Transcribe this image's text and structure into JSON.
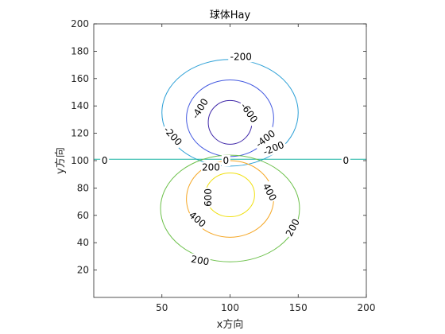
{
  "chart_data": {
    "type": "contour",
    "title": "球体Hay",
    "xlabel": "x方向",
    "ylabel": "y方向",
    "xlim": [
      0,
      200
    ],
    "ylim": [
      0,
      200
    ],
    "xticks": [
      50,
      100,
      150,
      200
    ],
    "yticks": [
      20,
      40,
      60,
      80,
      100,
      120,
      140,
      160,
      180,
      200
    ],
    "grid": false,
    "contours": [
      {
        "level": -600,
        "label": "-600",
        "color": "#3e26a8",
        "cx": 100,
        "cy": 128,
        "rx": 16,
        "ry": 16
      },
      {
        "level": -400,
        "label": "-400",
        "color": "#4258e0",
        "cx": 100,
        "cy": 131,
        "rx": 32,
        "ry": 28
      },
      {
        "level": -200,
        "label": "-200",
        "color": "#2a9fd6",
        "cx": 100,
        "cy": 135,
        "rx": 50,
        "ry": 39
      },
      {
        "level": 0,
        "label": "0",
        "color": "#19b3a4",
        "line_y": 101
      },
      {
        "level": 200,
        "label": "200",
        "color": "#6cc04a",
        "cx": 100,
        "cy": 65,
        "rx": 51,
        "ry": 39
      },
      {
        "level": 400,
        "label": "400",
        "color": "#f5a623",
        "cx": 100,
        "cy": 72,
        "rx": 32,
        "ry": 28
      },
      {
        "level": 600,
        "label": "600",
        "color": "#f0e010",
        "cx": 100,
        "cy": 75,
        "rx": 18,
        "ry": 16
      }
    ],
    "labels": [
      {
        "text": "-200",
        "x": 108,
        "y": 176,
        "angle": 0
      },
      {
        "text": "-400",
        "x": 78,
        "y": 138,
        "angle": -58
      },
      {
        "text": "-600",
        "x": 114,
        "y": 135,
        "angle": 55
      },
      {
        "text": "-400",
        "x": 126,
        "y": 116,
        "angle": -38
      },
      {
        "text": "-200",
        "x": 58,
        "y": 118,
        "angle": 48
      },
      {
        "text": "-200",
        "x": 132,
        "y": 109,
        "angle": -22
      },
      {
        "text": "0",
        "x": 8,
        "y": 100,
        "angle": 0
      },
      {
        "text": "0",
        "x": 97,
        "y": 100,
        "angle": 0
      },
      {
        "text": "0",
        "x": 185,
        "y": 100,
        "angle": 0
      },
      {
        "text": "200",
        "x": 86,
        "y": 95,
        "angle": 0
      },
      {
        "text": "600",
        "x": 84,
        "y": 73,
        "angle": -90
      },
      {
        "text": "400",
        "x": 129,
        "y": 77,
        "angle": 62
      },
      {
        "text": "400",
        "x": 76,
        "y": 57,
        "angle": 40
      },
      {
        "text": "200",
        "x": 146,
        "y": 51,
        "angle": -62
      },
      {
        "text": "200",
        "x": 78,
        "y": 27,
        "angle": 10
      }
    ]
  }
}
